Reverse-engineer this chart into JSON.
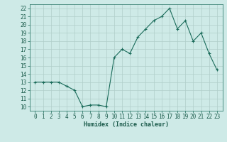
{
  "xlabel": "Humidex (Indice chaleur)",
  "x": [
    0,
    1,
    2,
    3,
    4,
    5,
    6,
    7,
    8,
    9,
    10,
    11,
    12,
    13,
    14,
    15,
    16,
    17,
    18,
    19,
    20,
    21,
    22,
    23
  ],
  "y": [
    13,
    13,
    13,
    13,
    12.5,
    12,
    10,
    10.2,
    10.2,
    10,
    16,
    17,
    16.5,
    18.5,
    19.5,
    20.5,
    21,
    22,
    19.5,
    20.5,
    18,
    19,
    16.5,
    14.5
  ],
  "ylim_min": 9.5,
  "ylim_max": 22.5,
  "yticks": [
    10,
    11,
    12,
    13,
    14,
    15,
    16,
    17,
    18,
    19,
    20,
    21,
    22
  ],
  "xticks": [
    0,
    1,
    2,
    3,
    4,
    5,
    6,
    7,
    8,
    9,
    10,
    11,
    12,
    13,
    14,
    15,
    16,
    17,
    18,
    19,
    20,
    21,
    22,
    23
  ],
  "line_color": "#1a6b5a",
  "marker": "+",
  "marker_size": 3,
  "linewidth": 0.8,
  "bg_color": "#ceeae7",
  "grid_major_color": "#b0ceca",
  "grid_minor_color": "#b0ceca",
  "fig_bg": "#ceeae7",
  "tick_fontsize": 5.5,
  "xlabel_fontsize": 6,
  "spine_color": "#1a6b5a"
}
